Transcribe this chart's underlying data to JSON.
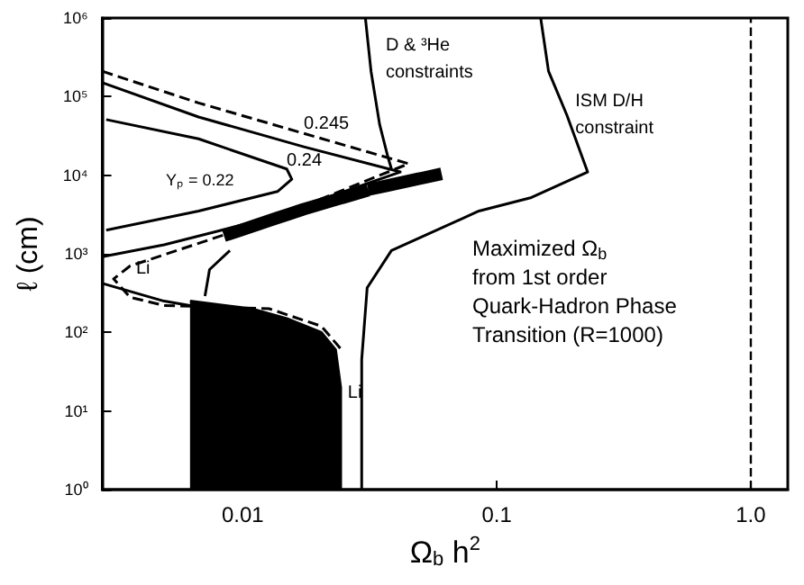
{
  "chart_data": {
    "type": "line",
    "xlabel": "Ω$_{b}$ h$^{2}$",
    "ylabel": "ℓ (cm)",
    "log": "xy",
    "grid": false,
    "marker": "none",
    "xlim": [
      0.0028,
      1.4
    ],
    "xticks": [
      0.01,
      0.1,
      {
        "value": 1,
        "label": "1.0"
      }
    ],
    "ylim": [
      1,
      1000000
    ],
    "yticks": [
      {
        "value": 1,
        "label": "10⁰"
      },
      {
        "value": 10,
        "label": "10¹"
      },
      {
        "value": 100,
        "label": "10²"
      },
      {
        "value": 1000,
        "label": "10³"
      },
      {
        "value": 10000,
        "label": "10⁴"
      },
      {
        "value": 100000,
        "label": "10⁵"
      },
      {
        "value": 1000000,
        "label": "10⁶"
      }
    ],
    "series": [
      {
        "type": "area",
        "color": "#000000",
        "x": [
          0.0062,
          0.0108,
          0.0149,
          0.0204,
          0.0232,
          0.0243,
          0.0243
        ],
        "values": [
          250,
          200,
          150,
          100,
          60,
          20,
          1
        ]
      },
      {
        "color": "#000000",
        "line_style": "dotted",
        "x": [
          0.0089,
          0.0174,
          0.0329,
          0.0574
        ],
        "values": [
          1800,
          3700,
          6800,
          10000
        ]
      },
      {
        "color": "#000000",
        "x": [
          0.0304,
          0.032,
          0.0346,
          0.0373,
          0.0385,
          null,
          0.0089,
          0.0074,
          0.0071
        ],
        "values": [
          1000000,
          210000,
          44000,
          17000,
          12000,
          null,
          1100,
          630,
          290
        ]
      },
      {
        "color": "#000000",
        "x": [
          0.149,
          0.16,
          0.189,
          0.228,
          0.137,
          0.0851,
          0.0385,
          0.0309,
          0.0294,
          0.0294
        ],
        "values": [
          1000000,
          210000,
          58000,
          11000,
          5200,
          3500,
          1100,
          370,
          45,
          1
        ]
      },
      {
        "color": "#000000",
        "x": [
          0.0029,
          0.0067,
          0.0149,
          0.0156,
          0.0137,
          0.0067,
          0.0029
        ],
        "values": [
          51000,
          29000,
          12000,
          8900,
          6200,
          3500,
          2000
        ]
      },
      {
        "color": "#000000",
        "x": [
          0.0028,
          0.0067,
          0.0174,
          0.0417,
          0.0174,
          0.0103,
          0.0049,
          0.0028,
          null,
          0.0028,
          0.0049,
          0.0062
        ],
        "values": [
          150000,
          55000,
          23000,
          11000,
          4100,
          2400,
          1300,
          920,
          null,
          420,
          250,
          220
        ]
      },
      {
        "color": "#000000",
        "line_style": "dashed",
        "x": [
          0.0028,
          0.0067,
          0.0174,
          0.045,
          0.0204,
          0.0105,
          0.0036,
          0.0031,
          0.0036,
          0.0049,
          0.0127,
          0.0204,
          0.0245
        ],
        "values": [
          210000,
          83000,
          34000,
          14000,
          5000,
          2200,
          700,
          480,
          280,
          220,
          200,
          120,
          60
        ]
      }
    ],
    "ref_lines": [
      {
        "axis": "x",
        "value": 1,
        "color": "#000000",
        "line_style": "dashed"
      }
    ],
    "annotations": [
      {
        "text": "0.245",
        "x": 0.0174,
        "y": 44000
      },
      {
        "text": "0.24",
        "x": 0.0149,
        "y": 15000
      },
      "Yₚ = 0.22",
      {
        "text": "Li",
        "x": 0.0038,
        "y": 640
      },
      {
        "text": "Li",
        "x": 0.0259,
        "y": 17
      },
      "D & ³He\nconstraints",
      {
        "text": "ISM D/H\nconstraint",
        "x": 0.204,
        "y": 58000
      },
      "Maximized Ω$_{b}$\nfrom 1st order\nQuark-Hadron Phase\nTransition (R=1000)"
    ]
  }
}
